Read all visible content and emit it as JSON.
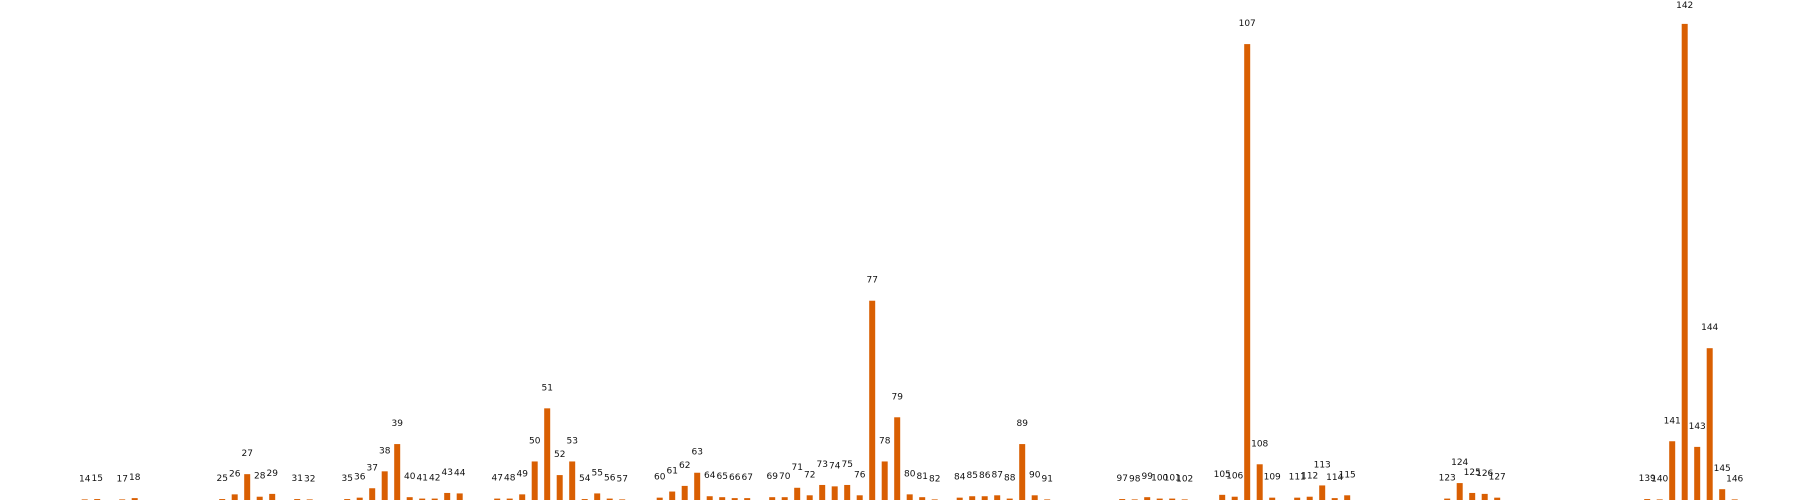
{
  "chart_data": {
    "type": "bar",
    "title": "",
    "xlabel": "",
    "ylabel": "",
    "grid": false,
    "legend": "none",
    "bar_color": "#d95f02",
    "categories": [
      "14",
      "15",
      "17",
      "18",
      "25",
      "26",
      "27",
      "28",
      "29",
      "31",
      "32",
      "35",
      "36",
      "37",
      "38",
      "39",
      "40",
      "41",
      "42",
      "43",
      "44",
      "47",
      "48",
      "49",
      "50",
      "51",
      "52",
      "53",
      "54",
      "55",
      "56",
      "57",
      "60",
      "61",
      "62",
      "63",
      "64",
      "65",
      "66",
      "67",
      "69",
      "70",
      "71",
      "72",
      "73",
      "74",
      "75",
      "76",
      "77",
      "78",
      "79",
      "80",
      "81",
      "82",
      "84",
      "85",
      "86",
      "87",
      "88",
      "89",
      "90",
      "91",
      "97",
      "98",
      "99",
      "100",
      "101",
      "102",
      "105",
      "106",
      "107",
      "108",
      "109",
      "111",
      "112",
      "113",
      "114",
      "115",
      "123",
      "124",
      "125",
      "126",
      "127",
      "139",
      "140",
      "141",
      "142",
      "143",
      "144",
      "145",
      "146"
    ],
    "x": [
      14,
      15,
      17,
      18,
      25,
      26,
      27,
      28,
      29,
      31,
      32,
      35,
      36,
      37,
      38,
      39,
      40,
      41,
      42,
      43,
      44,
      47,
      48,
      49,
      50,
      51,
      52,
      53,
      54,
      55,
      56,
      57,
      60,
      61,
      62,
      63,
      64,
      65,
      66,
      67,
      69,
      70,
      71,
      72,
      73,
      74,
      75,
      76,
      77,
      78,
      79,
      80,
      81,
      82,
      84,
      85,
      86,
      87,
      88,
      89,
      90,
      91,
      97,
      98,
      99,
      100,
      101,
      102,
      105,
      106,
      107,
      108,
      109,
      111,
      112,
      113,
      114,
      115,
      123,
      124,
      125,
      126,
      127,
      139,
      140,
      141,
      142,
      143,
      144,
      145,
      146
    ],
    "values": [
      0.1,
      0.2,
      0.1,
      0.4,
      0.2,
      1.2,
      5.5,
      0.7,
      1.3,
      0.2,
      0.1,
      0.2,
      0.5,
      2.5,
      6.1,
      11.9,
      0.6,
      0.3,
      0.3,
      1.5,
      1.4,
      0.3,
      0.3,
      1.2,
      8.2,
      19.5,
      5.3,
      8.2,
      0.2,
      1.4,
      0.3,
      0.1,
      0.5,
      1.8,
      3.0,
      5.8,
      0.8,
      0.6,
      0.4,
      0.4,
      0.6,
      0.6,
      2.6,
      1.0,
      3.2,
      2.9,
      3.2,
      1.0,
      42.4,
      8.2,
      17.6,
      1.2,
      0.6,
      0.1,
      0.5,
      0.8,
      0.8,
      1.0,
      0.3,
      11.9,
      1.0,
      0.1,
      0.2,
      0.1,
      0.6,
      0.3,
      0.3,
      0.1,
      1.1,
      0.7,
      97.0,
      7.6,
      0.5,
      0.5,
      0.7,
      3.1,
      0.4,
      1.0,
      0.3,
      3.6,
      1.5,
      1.3,
      0.5,
      0.2,
      0.1,
      12.5,
      101.3,
      11.3,
      32.3,
      2.3,
      0.1
    ]
  }
}
